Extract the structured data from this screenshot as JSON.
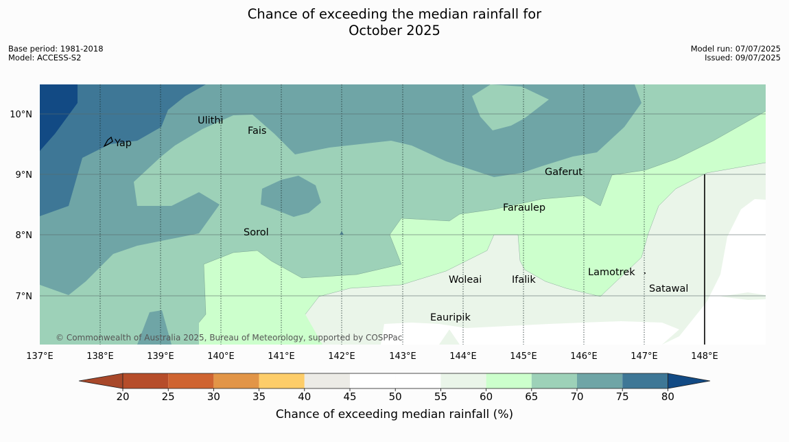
{
  "title_line1": "Chance of exceeding the median rainfall for",
  "title_line2": "October 2025",
  "meta_left": {
    "base_period": "Base period: 1981-2018",
    "model": "Model: ACCESS-S2"
  },
  "meta_right": {
    "model_run": "Model run: 07/07/2025",
    "issued": "Issued: 09/07/2025"
  },
  "copyright": "© Commonwealth of Australia 2025, Bureau of Meteorology, supported by COSPPac",
  "places": [
    "Ulithi",
    "Yap",
    "Fais",
    "Gaferut",
    "Faraulep",
    "Sorol",
    "Woleai",
    "Ifalik",
    "Lamotrek",
    "Satawal",
    "Eauripik"
  ],
  "lon_ticks": [
    "137°E",
    "138°E",
    "139°E",
    "140°E",
    "141°E",
    "142°E",
    "143°E",
    "144°E",
    "145°E",
    "146°E",
    "147°E",
    "148°E"
  ],
  "lat_ticks": [
    "10°N",
    "9°N",
    "8°N",
    "7°N"
  ],
  "colorbar": {
    "title": "Chance of exceeding median rainfall (%)",
    "ticks": [
      "20",
      "25",
      "30",
      "35",
      "40",
      "45",
      "50",
      "55",
      "60",
      "65",
      "70",
      "75",
      "80"
    ],
    "colors": [
      "#a8482a",
      "#b64d2a",
      "#cf6431",
      "#e29547",
      "#fdcd69",
      "#ecebe6",
      "#ffffff",
      "#ffffff",
      "#eaf5e9",
      "#ccffcc",
      "#9dd1b8",
      "#6fa5a6",
      "#3e7796",
      "#124a84"
    ]
  }
}
